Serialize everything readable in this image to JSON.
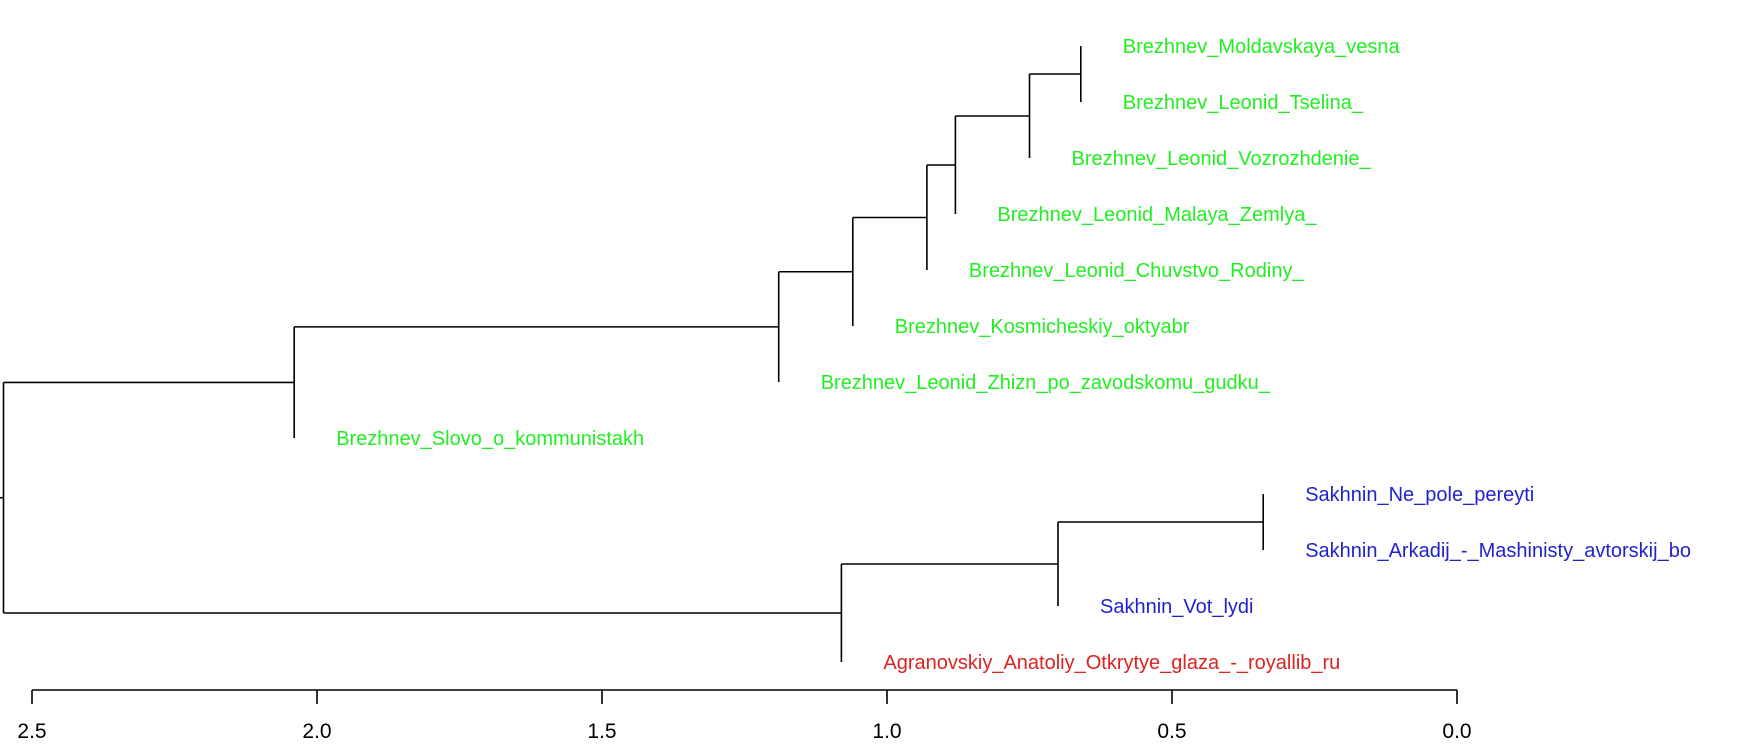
{
  "colors": {
    "Brezhnev": "#22ee22",
    "Sakhnin": "#2222cc",
    "Agranovskiy": "#dd2222",
    "lines": "#000000"
  },
  "axis": {
    "domain": [
      2.5,
      0.0
    ],
    "ticks": [
      2.5,
      2.0,
      1.5,
      1.0,
      0.5,
      0.0
    ],
    "tick_labels": [
      "2.5",
      "2.0",
      "1.5",
      "1.0",
      "0.5",
      "0.0"
    ]
  },
  "leaves": [
    {
      "label": "Brezhnev_Moldavskaya_vesna",
      "group": "Brezhnev"
    },
    {
      "label": "Brezhnev_Leonid_Tselina_",
      "group": "Brezhnev"
    },
    {
      "label": "Brezhnev_Leonid_Vozrozhdenie_",
      "group": "Brezhnev"
    },
    {
      "label": "Brezhnev_Leonid_Malaya_Zemlya_",
      "group": "Brezhnev"
    },
    {
      "label": "Brezhnev_Leonid_Chuvstvo_Rodiny_",
      "group": "Brezhnev"
    },
    {
      "label": "Brezhnev_Kosmicheskiy_oktyabr",
      "group": "Brezhnev"
    },
    {
      "label": "Brezhnev_Leonid_Zhizn_po_zavodskomu_gudku_",
      "group": "Brezhnev"
    },
    {
      "label": "Brezhnev_Slovo_o_kommunistakh",
      "group": "Brezhnev"
    },
    {
      "label": "Sakhnin_Ne_pole_pereyti",
      "group": "Sakhnin"
    },
    {
      "label": "Sakhnin_Arkadij_-_Mashinisty_avtorskij_bo",
      "group": "Sakhnin"
    },
    {
      "label": "Sakhnin_Vot_lydi",
      "group": "Sakhnin"
    },
    {
      "label": "Agranovskiy_Anatoliy_Otkrytye_glaza_-_royallib_ru",
      "group": "Agranovskiy"
    }
  ],
  "tree": {
    "h": 2.55,
    "children": [
      {
        "h": 2.04,
        "children": [
          {
            "h": 1.19,
            "children": [
              {
                "h": 1.06,
                "children": [
                  {
                    "h": 0.93,
                    "children": [
                      {
                        "h": 0.88,
                        "children": [
                          {
                            "h": 0.75,
                            "children": [
                              {
                                "h": 0.66,
                                "children": [
                                  {
                                    "leaf": 0
                                  },
                                  {
                                    "leaf": 1
                                  }
                                ]
                              },
                              {
                                "leaf": 2
                              }
                            ]
                          },
                          {
                            "leaf": 3
                          }
                        ]
                      },
                      {
                        "leaf": 4
                      }
                    ]
                  },
                  {
                    "leaf": 5
                  }
                ]
              },
              {
                "leaf": 6
              }
            ]
          },
          {
            "leaf": 7
          }
        ]
      },
      {
        "h": 1.08,
        "children": [
          {
            "h": 0.7,
            "children": [
              {
                "h": 0.34,
                "children": [
                  {
                    "leaf": 8
                  },
                  {
                    "leaf": 9
                  }
                ]
              },
              {
                "leaf": 10
              }
            ]
          },
          {
            "leaf": 11
          }
        ]
      }
    ]
  }
}
